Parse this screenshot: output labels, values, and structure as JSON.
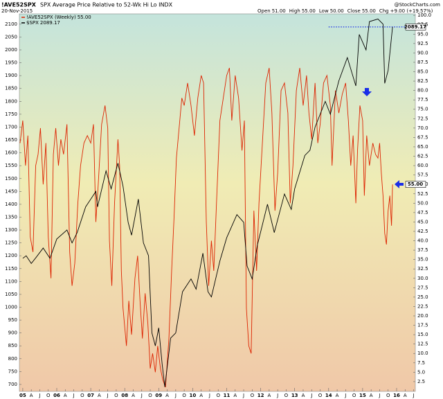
{
  "chart_data": {
    "type": "line",
    "symbol": "!AVE52SPX",
    "title": "SPX Average Price Relative to 52-Wk Hi Lo INDX",
    "date": "20-Nov-2015",
    "source": "@StockCharts.com",
    "quote": [
      {
        "label": "Open",
        "value": "51.00"
      },
      {
        "label": "High",
        "value": "55.00"
      },
      {
        "label": "Low",
        "value": "50.00"
      },
      {
        "label": "Close",
        "value": "55.00"
      },
      {
        "label": "Chg",
        "value": "+9.00 (+19.57%)"
      }
    ],
    "grid": false,
    "xlim": [
      2004.9,
      2016.55
    ],
    "xticks": [
      {
        "value": 2005,
        "label": "05"
      },
      {
        "value": 2005.25,
        "label": "A"
      },
      {
        "value": 2005.5,
        "label": "J"
      },
      {
        "value": 2005.75,
        "label": "O"
      },
      {
        "value": 2006,
        "label": "06"
      },
      {
        "value": 2006.25,
        "label": "A"
      },
      {
        "value": 2006.5,
        "label": "J"
      },
      {
        "value": 2006.75,
        "label": "O"
      },
      {
        "value": 2007,
        "label": "07"
      },
      {
        "value": 2007.25,
        "label": "A"
      },
      {
        "value": 2007.5,
        "label": "J"
      },
      {
        "value": 2007.75,
        "label": "O"
      },
      {
        "value": 2008,
        "label": "08"
      },
      {
        "value": 2008.25,
        "label": "A"
      },
      {
        "value": 2008.5,
        "label": "J"
      },
      {
        "value": 2008.75,
        "label": "O"
      },
      {
        "value": 2009,
        "label": "09"
      },
      {
        "value": 2009.25,
        "label": "A"
      },
      {
        "value": 2009.5,
        "label": "J"
      },
      {
        "value": 2009.75,
        "label": "O"
      },
      {
        "value": 2010,
        "label": "10"
      },
      {
        "value": 2010.25,
        "label": "A"
      },
      {
        "value": 2010.5,
        "label": "J"
      },
      {
        "value": 2010.75,
        "label": "O"
      },
      {
        "value": 2011,
        "label": "11"
      },
      {
        "value": 2011.25,
        "label": "A"
      },
      {
        "value": 2011.5,
        "label": "J"
      },
      {
        "value": 2011.75,
        "label": "O"
      },
      {
        "value": 2012,
        "label": "12"
      },
      {
        "value": 2012.25,
        "label": "A"
      },
      {
        "value": 2012.5,
        "label": "J"
      },
      {
        "value": 2012.75,
        "label": "O"
      },
      {
        "value": 2013,
        "label": "13"
      },
      {
        "value": 2013.25,
        "label": "A"
      },
      {
        "value": 2013.5,
        "label": "J"
      },
      {
        "value": 2013.75,
        "label": "O"
      },
      {
        "value": 2014,
        "label": "14"
      },
      {
        "value": 2014.25,
        "label": "A"
      },
      {
        "value": 2014.5,
        "label": "J"
      },
      {
        "value": 2014.75,
        "label": "O"
      },
      {
        "value": 2015,
        "label": "15"
      },
      {
        "value": 2015.25,
        "label": "A"
      },
      {
        "value": 2015.5,
        "label": "J"
      },
      {
        "value": 2015.75,
        "label": "O"
      },
      {
        "value": 2016,
        "label": "16"
      },
      {
        "value": 2016.25,
        "label": "A"
      },
      {
        "value": 2016.5,
        "label": "J"
      }
    ],
    "ylim": [
      673,
      2140
    ],
    "yticks": [
      700,
      750,
      800,
      850,
      900,
      950,
      1000,
      1050,
      1100,
      1150,
      1200,
      1250,
      1300,
      1350,
      1400,
      1450,
      1500,
      1550,
      1600,
      1650,
      1700,
      1750,
      1800,
      1850,
      1900,
      1950,
      2000,
      2050,
      2100
    ],
    "y2lim": [
      -0.1,
      100.4
    ],
    "y2ticks": [
      2.5,
      {
        "value": 5,
        "label": "5.0"
      },
      7.5,
      {
        "value": 10,
        "label": "10.0"
      },
      12.5,
      {
        "value": 15,
        "label": "15.0"
      },
      17.5,
      {
        "value": 20,
        "label": "20.0"
      },
      22.5,
      {
        "value": 25,
        "label": "25.0"
      },
      27.5,
      {
        "value": 30,
        "label": "30.0"
      },
      32.5,
      {
        "value": 35,
        "label": "35.0"
      },
      37.5,
      {
        "value": 40,
        "label": "40.0"
      },
      42.5,
      {
        "value": 45,
        "label": "45.0"
      },
      47.5,
      {
        "value": 50,
        "label": "50.0"
      },
      52.5,
      {
        "value": 55,
        "label": "55.0"
      },
      57.5,
      {
        "value": 60,
        "label": "60.0"
      },
      62.5,
      {
        "value": 65,
        "label": "65.0"
      },
      67.5,
      {
        "value": 70,
        "label": "70.0"
      },
      72.5,
      {
        "value": 75,
        "label": "75.0"
      },
      77.5,
      {
        "value": 80,
        "label": "80.0"
      },
      82.5,
      {
        "value": 85,
        "label": "85.0"
      },
      87.5,
      {
        "value": 90,
        "label": "90.0"
      },
      92.5,
      {
        "value": 95,
        "label": "95.0"
      },
      97.5,
      {
        "value": 100,
        "label": "100.0"
      }
    ],
    "series": [
      {
        "name": "!AVE52SPX (Weekly)",
        "color": "#dd2200",
        "axis": "y2",
        "last_label": "55.00",
        "x": [
          2004.92,
          2005.0,
          2005.08,
          2005.15,
          2005.22,
          2005.3,
          2005.38,
          2005.45,
          2005.52,
          2005.6,
          2005.68,
          2005.75,
          2005.83,
          2005.9,
          2005.97,
          2006.05,
          2006.12,
          2006.2,
          2006.3,
          2006.38,
          2006.45,
          2006.53,
          2006.62,
          2006.7,
          2006.8,
          2006.9,
          2007.0,
          2007.08,
          2007.15,
          2007.22,
          2007.32,
          2007.42,
          2007.5,
          2007.55,
          2007.62,
          2007.7,
          2007.8,
          2007.85,
          2007.9,
          2007.95,
          2008.05,
          2008.12,
          2008.2,
          2008.3,
          2008.38,
          2008.45,
          2008.52,
          2008.6,
          2008.68,
          2008.75,
          2008.82,
          2008.9,
          2008.97,
          2009.05,
          2009.12,
          2009.2,
          2009.3,
          2009.38,
          2009.45,
          2009.52,
          2009.6,
          2009.68,
          2009.75,
          2009.85,
          2009.95,
          2010.05,
          2010.15,
          2010.25,
          2010.32,
          2010.4,
          2010.47,
          2010.55,
          2010.62,
          2010.7,
          2010.8,
          2010.9,
          2011.0,
          2011.08,
          2011.15,
          2011.25,
          2011.35,
          2011.45,
          2011.52,
          2011.58,
          2011.65,
          2011.72,
          2011.8,
          2011.88,
          2011.95,
          2012.05,
          2012.15,
          2012.25,
          2012.33,
          2012.42,
          2012.5,
          2012.6,
          2012.7,
          2012.8,
          2012.87,
          2012.95,
          2013.05,
          2013.15,
          2013.25,
          2013.35,
          2013.42,
          2013.5,
          2013.6,
          2013.68,
          2013.75,
          2013.85,
          2013.95,
          2014.05,
          2014.1,
          2014.2,
          2014.3,
          2014.4,
          2014.5,
          2014.58,
          2014.65,
          2014.72,
          2014.8,
          2014.85,
          2014.92,
          2015.0,
          2015.05,
          2015.12,
          2015.2,
          2015.3,
          2015.38,
          2015.45,
          2015.5,
          2015.55,
          2015.6,
          2015.65,
          2015.7,
          2015.75,
          2015.8,
          2015.85,
          2015.88
        ],
        "values": [
          66,
          72,
          60,
          68,
          41,
          37,
          60,
          63,
          70,
          55,
          66,
          41,
          30,
          63,
          70,
          60,
          67,
          63,
          71,
          37,
          28,
          34,
          50,
          60,
          66,
          68,
          66,
          71,
          45,
          55,
          71,
          76,
          70,
          40,
          28,
          50,
          67,
          60,
          32,
          22,
          12,
          24,
          15,
          30,
          36,
          24,
          14,
          26,
          18,
          6,
          10,
          5,
          12,
          6,
          3,
          1,
          14,
          32,
          46,
          62,
          70,
          78,
          76,
          82,
          76,
          68,
          78,
          84,
          82,
          45,
          28,
          40,
          32,
          50,
          72,
          78,
          84,
          86,
          72,
          84,
          78,
          64,
          72,
          22,
          12,
          10,
          48,
          32,
          50,
          66,
          82,
          86,
          74,
          48,
          58,
          80,
          82,
          74,
          50,
          60,
          80,
          86,
          76,
          84,
          74,
          67,
          82,
          66,
          71,
          82,
          84,
          76,
          60,
          80,
          74,
          79,
          82,
          72,
          60,
          68,
          50,
          64,
          76,
          72,
          52,
          68,
          60,
          66,
          63,
          62,
          66,
          58,
          52,
          42,
          39,
          48,
          52,
          44,
          55
        ]
      },
      {
        "name": "$SPX",
        "color": "#000000",
        "x": [
          2005.0,
          2005.1,
          2005.25,
          2005.4,
          2005.6,
          2005.8,
          2006.0,
          2006.3,
          2006.45,
          2006.6,
          2006.85,
          2007.0,
          2007.15,
          2007.2,
          2007.45,
          2007.6,
          2007.8,
          2007.95,
          2008.1,
          2008.2,
          2008.4,
          2008.55,
          2008.7,
          2008.8,
          2008.9,
          2009.0,
          2009.1,
          2009.18,
          2009.35,
          2009.5,
          2009.7,
          2009.95,
          2010.1,
          2010.3,
          2010.45,
          2010.55,
          2010.8,
          2011.0,
          2011.3,
          2011.5,
          2011.6,
          2011.75,
          2011.9,
          2012.2,
          2012.4,
          2012.7,
          2012.9,
          2013.0,
          2013.3,
          2013.45,
          2013.6,
          2013.9,
          2014.05,
          2014.3,
          2014.55,
          2014.8,
          2014.9,
          2015.1,
          2015.2,
          2015.45,
          2015.6,
          2015.65,
          2015.75,
          2015.88
        ],
        "values": [
          1190,
          1200,
          1170,
          1195,
          1230,
          1190,
          1265,
          1300,
          1250,
          1290,
          1390,
          1420,
          1450,
          1390,
          1530,
          1460,
          1560,
          1470,
          1330,
          1280,
          1420,
          1250,
          1200,
          900,
          850,
          920,
          780,
          690,
          880,
          900,
          1060,
          1110,
          1070,
          1210,
          1060,
          1040,
          1180,
          1270,
          1360,
          1330,
          1160,
          1110,
          1240,
          1400,
          1290,
          1440,
          1380,
          1460,
          1590,
          1610,
          1700,
          1800,
          1750,
          1880,
          1970,
          1860,
          2060,
          2000,
          2110,
          2120,
          2100,
          1870,
          1920,
          2089.17
        ]
      }
    ]
  }
}
